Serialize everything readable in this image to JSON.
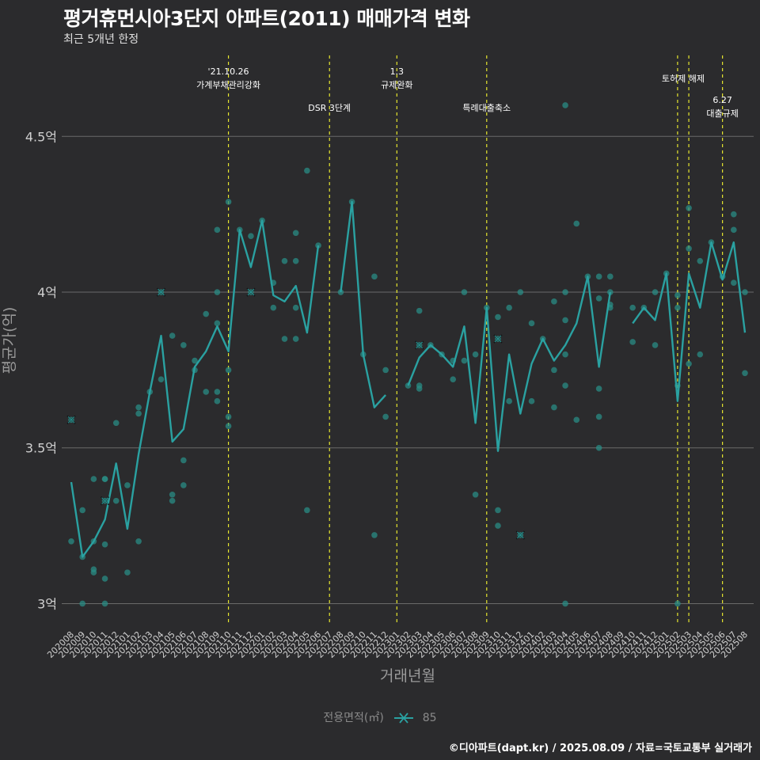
{
  "title": "평거휴먼시아3단지 아파트(2011) 매매가격 변화",
  "subtitle": "최근 5개년 한정",
  "caption": "©디아파트(dapt.kr) / 2025.08.09 / 자료=국토교통부 실거래가",
  "colors": {
    "background": "#2b2b2d",
    "series": "#2aa1a1",
    "points": "#2a8c84",
    "event_line": "#e6e62e",
    "grid": "#6a6a6a",
    "axis_text": "#d0d0d0"
  },
  "legend": {
    "title": "전용면적(㎡)",
    "items": [
      {
        "label": "85",
        "symbol": "x-line"
      }
    ]
  },
  "chart_data": {
    "type": "line",
    "xlabel": "거래년월",
    "ylabel": "평균가(억)",
    "ylim": [
      2.93,
      4.76
    ],
    "y_ticks": [
      {
        "value": 3.0,
        "label": "3억"
      },
      {
        "value": 3.5,
        "label": "3.5억"
      },
      {
        "value": 4.0,
        "label": "4억"
      },
      {
        "value": 4.5,
        "label": "4.5억"
      }
    ],
    "grid": "horizontal",
    "legend_position": "bottom",
    "x": [
      "202008",
      "202009",
      "202010",
      "202011",
      "202012",
      "202101",
      "202102",
      "202103",
      "202104",
      "202105",
      "202106",
      "202107",
      "202108",
      "202109",
      "202110",
      "202111",
      "202112",
      "202201",
      "202202",
      "202203",
      "202204",
      "202205",
      "202206",
      "202207",
      "202208",
      "202209",
      "202210",
      "202211",
      "202212",
      "202301",
      "202302",
      "202303",
      "202304",
      "202305",
      "202306",
      "202307",
      "202308",
      "202309",
      "202310",
      "202311",
      "202312",
      "202401",
      "202402",
      "202403",
      "202404",
      "202405",
      "202406",
      "202407",
      "202408",
      "202409",
      "202410",
      "202411",
      "202412",
      "202501",
      "202502",
      "202503",
      "202504",
      "202505",
      "202506",
      "202507",
      "202508"
    ],
    "series": [
      {
        "name": "85",
        "values": [
          3.39,
          3.15,
          3.2,
          3.27,
          3.45,
          3.24,
          3.48,
          3.68,
          3.86,
          3.52,
          3.56,
          3.76,
          3.81,
          3.89,
          3.81,
          4.2,
          4.08,
          4.23,
          3.99,
          3.97,
          4.02,
          3.87,
          4.15,
          null,
          4.0,
          4.29,
          3.8,
          3.63,
          3.67,
          null,
          3.7,
          3.79,
          3.83,
          3.8,
          3.76,
          3.89,
          3.58,
          3.95,
          3.49,
          3.8,
          3.61,
          3.77,
          3.85,
          3.78,
          3.83,
          3.9,
          4.05,
          3.76,
          4.0,
          null,
          3.9,
          3.95,
          3.91,
          4.06,
          3.65,
          4.06,
          3.95,
          4.16,
          4.04,
          4.16,
          3.87
        ]
      }
    ],
    "scatter": [
      [
        "202008",
        3.2
      ],
      [
        "202008",
        3.59
      ],
      [
        "202009",
        3.3
      ],
      [
        "202009",
        3.0
      ],
      [
        "202009",
        3.15
      ],
      [
        "202010",
        3.4
      ],
      [
        "202010",
        3.2
      ],
      [
        "202010",
        3.1
      ],
      [
        "202010",
        3.11
      ],
      [
        "202011",
        3.4
      ],
      [
        "202011",
        3.33
      ],
      [
        "202011",
        3.19
      ],
      [
        "202011",
        3.08
      ],
      [
        "202011",
        3.0
      ],
      [
        "202011",
        3.4
      ],
      [
        "202012",
        3.58
      ],
      [
        "202012",
        3.33
      ],
      [
        "202101",
        3.38
      ],
      [
        "202101",
        3.1
      ],
      [
        "202102",
        3.63
      ],
      [
        "202102",
        3.61
      ],
      [
        "202102",
        3.2
      ],
      [
        "202103",
        3.68
      ],
      [
        "202104",
        3.72
      ],
      [
        "202104",
        4.0
      ],
      [
        "202105",
        3.86
      ],
      [
        "202105",
        3.35
      ],
      [
        "202105",
        3.33
      ],
      [
        "202106",
        3.83
      ],
      [
        "202106",
        3.46
      ],
      [
        "202106",
        3.38
      ],
      [
        "202107",
        3.78
      ],
      [
        "202107",
        3.75
      ],
      [
        "202108",
        3.93
      ],
      [
        "202108",
        3.68
      ],
      [
        "202109",
        4.2
      ],
      [
        "202109",
        4.0
      ],
      [
        "202109",
        3.9
      ],
      [
        "202109",
        3.68
      ],
      [
        "202109",
        3.65
      ],
      [
        "202110",
        4.29
      ],
      [
        "202110",
        3.75
      ],
      [
        "202110",
        3.6
      ],
      [
        "202110",
        3.57
      ],
      [
        "202111",
        4.2
      ],
      [
        "202112",
        4.18
      ],
      [
        "202112",
        4.0
      ],
      [
        "202201",
        4.23
      ],
      [
        "202202",
        4.03
      ],
      [
        "202202",
        3.95
      ],
      [
        "202203",
        4.1
      ],
      [
        "202203",
        3.85
      ],
      [
        "202204",
        4.19
      ],
      [
        "202204",
        4.1
      ],
      [
        "202204",
        3.95
      ],
      [
        "202204",
        3.85
      ],
      [
        "202205",
        4.39
      ],
      [
        "202205",
        3.3
      ],
      [
        "202206",
        4.15
      ],
      [
        "202208",
        4.0
      ],
      [
        "202209",
        4.29
      ],
      [
        "202210",
        3.8
      ],
      [
        "202211",
        4.05
      ],
      [
        "202211",
        3.22
      ],
      [
        "202212",
        3.75
      ],
      [
        "202212",
        3.6
      ],
      [
        "202302",
        3.7
      ],
      [
        "202303",
        3.94
      ],
      [
        "202303",
        3.7
      ],
      [
        "202303",
        3.69
      ],
      [
        "202303",
        3.83
      ],
      [
        "202304",
        3.83
      ],
      [
        "202305",
        3.8
      ],
      [
        "202306",
        3.78
      ],
      [
        "202306",
        3.72
      ],
      [
        "202307",
        4.0
      ],
      [
        "202307",
        3.78
      ],
      [
        "202308",
        3.8
      ],
      [
        "202308",
        3.35
      ],
      [
        "202309",
        3.95
      ],
      [
        "202310",
        3.92
      ],
      [
        "202310",
        3.85
      ],
      [
        "202310",
        3.3
      ],
      [
        "202310",
        3.25
      ],
      [
        "202311",
        3.95
      ],
      [
        "202311",
        3.65
      ],
      [
        "202312",
        4.0
      ],
      [
        "202312",
        3.22
      ],
      [
        "202401",
        3.9
      ],
      [
        "202401",
        3.65
      ],
      [
        "202402",
        3.85
      ],
      [
        "202403",
        3.97
      ],
      [
        "202403",
        3.75
      ],
      [
        "202403",
        3.63
      ],
      [
        "202404",
        4.6
      ],
      [
        "202404",
        4.0
      ],
      [
        "202404",
        3.91
      ],
      [
        "202404",
        3.8
      ],
      [
        "202404",
        3.7
      ],
      [
        "202404",
        3.0
      ],
      [
        "202405",
        4.22
      ],
      [
        "202405",
        3.59
      ],
      [
        "202406",
        4.05
      ],
      [
        "202407",
        4.05
      ],
      [
        "202407",
        3.98
      ],
      [
        "202407",
        3.69
      ],
      [
        "202407",
        3.6
      ],
      [
        "202407",
        3.5
      ],
      [
        "202408",
        4.05
      ],
      [
        "202408",
        4.0
      ],
      [
        "202408",
        3.96
      ],
      [
        "202408",
        3.95
      ],
      [
        "202410",
        3.95
      ],
      [
        "202410",
        3.84
      ],
      [
        "202411",
        3.95
      ],
      [
        "202412",
        4.0
      ],
      [
        "202412",
        3.83
      ],
      [
        "202501",
        4.06
      ],
      [
        "202502",
        3.99
      ],
      [
        "202502",
        3.95
      ],
      [
        "202502",
        3.7
      ],
      [
        "202502",
        3.0
      ],
      [
        "202503",
        4.27
      ],
      [
        "202503",
        4.14
      ],
      [
        "202503",
        3.77
      ],
      [
        "202504",
        4.1
      ],
      [
        "202504",
        3.8
      ],
      [
        "202505",
        4.16
      ],
      [
        "202506",
        4.05
      ],
      [
        "202507",
        4.25
      ],
      [
        "202507",
        4.2
      ],
      [
        "202507",
        4.03
      ],
      [
        "202508",
        4.0
      ],
      [
        "202508",
        3.74
      ]
    ],
    "x_markers": [
      [
        "202008",
        3.59
      ],
      [
        "202011",
        3.33
      ],
      [
        "202104",
        4.0
      ],
      [
        "202112",
        4.0
      ],
      [
        "202303",
        3.83
      ],
      [
        "202310",
        3.85
      ],
      [
        "202312",
        3.22
      ]
    ],
    "events": [
      {
        "x": "202110",
        "lines": [
          "'21.10.26",
          "가계부채관리강화"
        ],
        "level": 1
      },
      {
        "x": "202207",
        "lines": [
          "DSR 3단계"
        ],
        "level": 2
      },
      {
        "x": "202301",
        "lines": [
          "1.3",
          "규제완화"
        ],
        "level": 1
      },
      {
        "x": "202309",
        "lines": [
          "특례대출축소"
        ],
        "level": 2
      },
      {
        "x": "202502",
        "lines": [
          "토허제 해제"
        ],
        "level": 0,
        "pair_with": "202503"
      },
      {
        "x": "202503",
        "lines": [],
        "level": 0
      },
      {
        "x": "202506",
        "lines": [
          "6.27",
          "대출규제"
        ],
        "level": 3
      }
    ]
  }
}
